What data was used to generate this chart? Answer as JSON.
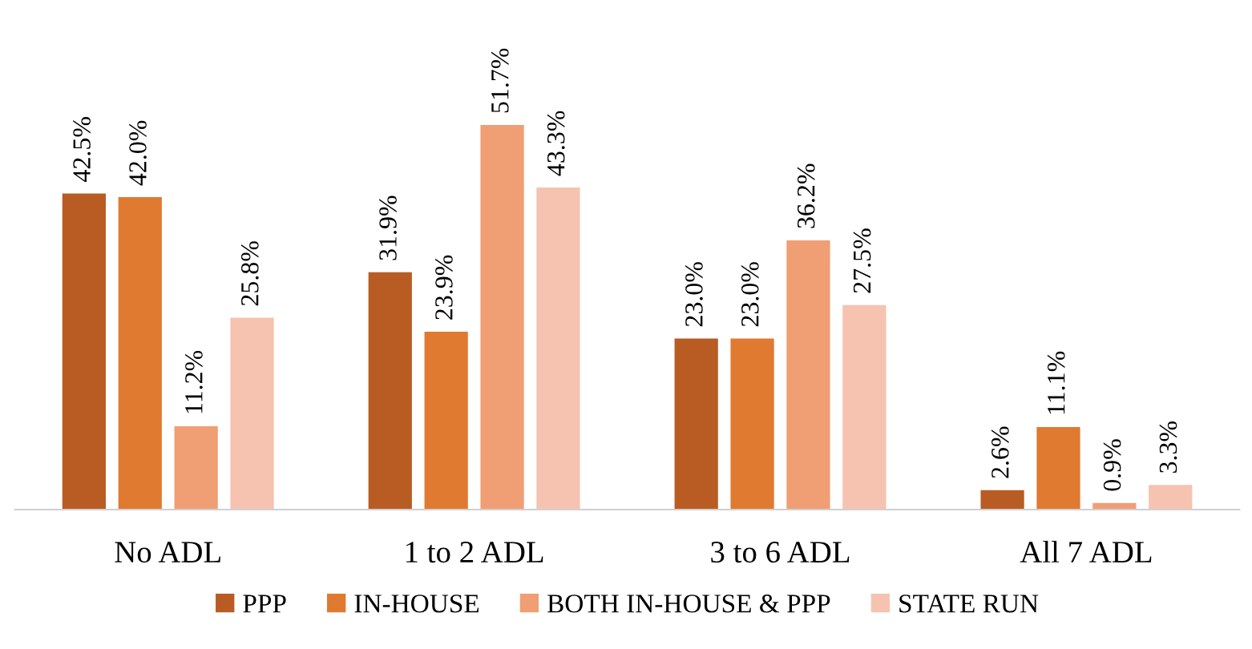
{
  "chart_data": {
    "type": "bar",
    "categories": [
      "No ADL",
      "1 to 2 ADL",
      "3 to 6 ADL",
      "All 7 ADL"
    ],
    "series": [
      {
        "name": "PPP",
        "color": "#b85c24",
        "values": [
          42.5,
          31.9,
          23.0,
          2.6
        ],
        "value_labels": [
          "42.5%",
          "31.9%",
          "23.0%",
          "2.6%"
        ]
      },
      {
        "name": "IN-HOUSE",
        "color": "#e07a30",
        "values": [
          42.0,
          23.9,
          23.0,
          11.1
        ],
        "value_labels": [
          "42.0%",
          "23.9%",
          "23.0%",
          "11.1%"
        ]
      },
      {
        "name": "BOTH IN-HOUSE & PPP",
        "color": "#f09e74",
        "values": [
          11.2,
          51.7,
          36.2,
          0.9
        ],
        "value_labels": [
          "11.2%",
          "51.7%",
          "36.2%",
          "0.9%"
        ]
      },
      {
        "name": "STATE RUN",
        "color": "#f5c3b0",
        "values": [
          25.8,
          43.3,
          27.5,
          3.3
        ],
        "value_labels": [
          "25.8%",
          "43.3%",
          "27.5%",
          "3.3%"
        ]
      }
    ],
    "legend": "bottom"
  }
}
